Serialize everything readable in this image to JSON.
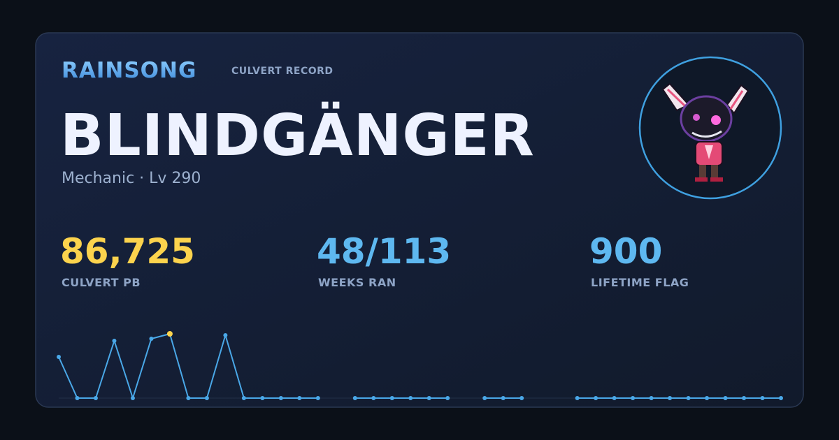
{
  "header": {
    "brand": "RAINSONG",
    "subtitle": "CULVERT RECORD"
  },
  "character": {
    "name": "BLINDGÄNGER",
    "info": "Mechanic · Lv 290"
  },
  "stats": [
    {
      "value": "86,725",
      "label": "CULVERT PB",
      "color": "#fcd34d"
    },
    {
      "value": "48/113",
      "label": "WEEKS RAN",
      "color": "#5eb8f0"
    },
    {
      "value": "900",
      "label": "LIFETIME FLAG",
      "color": "#5eb8f0"
    }
  ],
  "chart_data": {
    "type": "line",
    "color": "#4aa8e8",
    "highlight_color": "#fcd34d",
    "values": [
      55600,
      0,
      0,
      77300,
      0,
      80100,
      86725,
      0,
      0,
      84840,
      0,
      0,
      0,
      0,
      0,
      null,
      0,
      0,
      0,
      0,
      0,
      0,
      null,
      0,
      0,
      0,
      null,
      null,
      0,
      0,
      0,
      0,
      0,
      0,
      0,
      0,
      0,
      0,
      0,
      0
    ]
  }
}
